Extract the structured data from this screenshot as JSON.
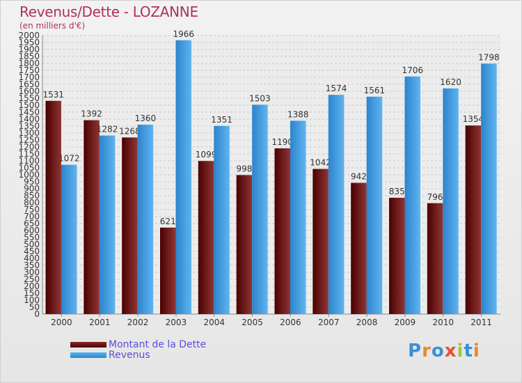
{
  "chart_data": {
    "type": "bar",
    "title": "Revenus/Dette - LOZANNE",
    "subtitle": "(en milliers d'€)",
    "categories": [
      "2000",
      "2001",
      "2002",
      "2003",
      "2004",
      "2005",
      "2006",
      "2007",
      "2008",
      "2009",
      "2010",
      "2011"
    ],
    "series": [
      {
        "name": "Montant de la Dette",
        "color": "#6b1416",
        "labels": [
          "1531",
          "1392",
          "1268",
          "621",
          "1099",
          "998",
          "1190",
          "1042",
          "942",
          "835",
          "796",
          "1354"
        ],
        "values": [
          1531,
          1392,
          1268,
          621,
          1099,
          998,
          1190,
          1042,
          942,
          835,
          796,
          1354
        ]
      },
      {
        "name": "Revenus",
        "color": "#3f9ee6",
        "labels": [
          "1072",
          "1282",
          "1360",
          "1966",
          "1351",
          "1503",
          "1388",
          "1574",
          "1561",
          "1706",
          "1620",
          "1798"
        ],
        "values": [
          1072,
          1282,
          1360,
          1966,
          1351,
          1503,
          1388,
          1574,
          1561,
          1706,
          1620,
          1798
        ]
      }
    ],
    "yticks": [
      "0",
      "50",
      "100",
      "150",
      "200",
      "250",
      "300",
      "350",
      "400",
      "450",
      "500",
      "550",
      "600",
      "650",
      "700",
      "750",
      "800",
      "850",
      "900",
      "950",
      "1000",
      "1050",
      "1100",
      "1150",
      "1200",
      "1250",
      "1300",
      "1350",
      "1400",
      "1450",
      "1500",
      "1550",
      "1600",
      "1650",
      "1700",
      "1750",
      "1800",
      "1850",
      "1900",
      "1950",
      "2000"
    ],
    "ylim": [
      0,
      2000
    ],
    "grid": true,
    "legend_position": "bottom-left"
  },
  "logo": {
    "text": "Proxiti"
  }
}
